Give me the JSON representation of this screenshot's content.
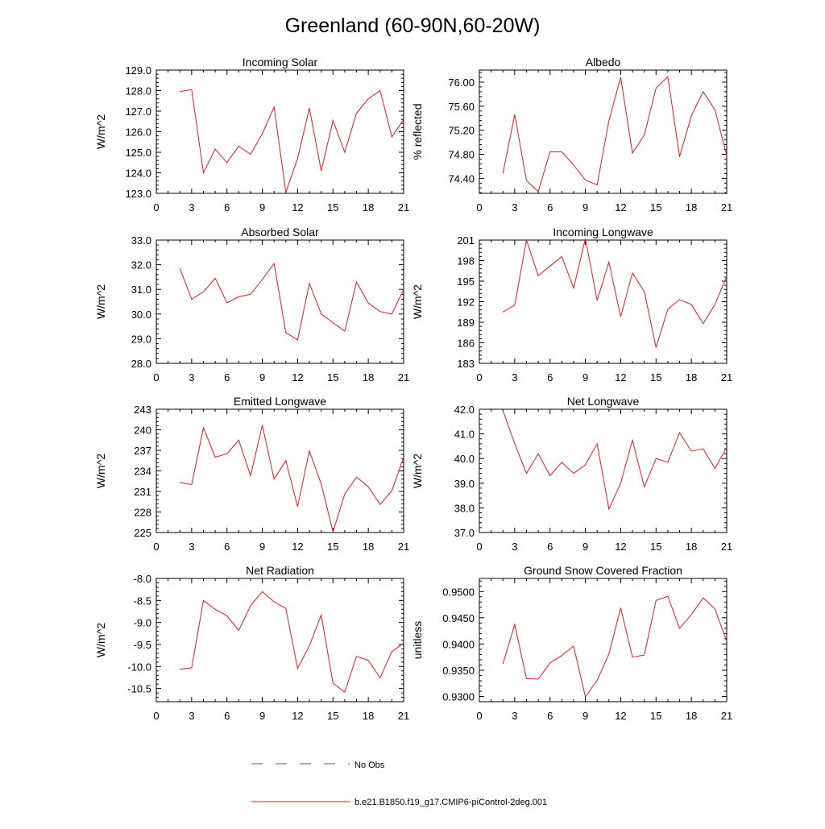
{
  "title": "Greenland (60-90N,60-20W)",
  "legend": {
    "obs_label": "No Obs",
    "obs_color": "#4a5ab8",
    "model_label": "b.e21.B1850.f19_g17.CMIP6-piControl-2deg.001",
    "model_color": "#e31a1c"
  },
  "chart_data": [
    {
      "type": "line",
      "title": "Incoming Solar",
      "ylabel": "W/m^2",
      "xlim": [
        0,
        21
      ],
      "ylim": [
        123,
        129
      ],
      "xticks": [
        0,
        3,
        6,
        9,
        12,
        15,
        18,
        21
      ],
      "yticks": [
        123,
        124,
        125,
        126,
        127,
        128,
        129
      ],
      "ytick_format": "fixed1",
      "ytick_labels_side": "left",
      "x": [
        2,
        3,
        4,
        5,
        6,
        7,
        8,
        9,
        10,
        11,
        12,
        13,
        14,
        15,
        16,
        17,
        18,
        19,
        20,
        21
      ],
      "series": [
        {
          "values": [
            127.95,
            128.05,
            124.0,
            125.15,
            124.5,
            125.3,
            124.9,
            125.9,
            127.2,
            123.05,
            124.7,
            127.15,
            124.1,
            126.55,
            125.0,
            126.9,
            127.6,
            128.0,
            125.75,
            126.6
          ]
        }
      ]
    },
    {
      "type": "line",
      "title": "Albedo",
      "ylabel": "% reflected",
      "xlim": [
        0,
        21
      ],
      "ylim": [
        74.15,
        76.2
      ],
      "xticks": [
        0,
        3,
        6,
        9,
        12,
        15,
        18,
        21
      ],
      "yticks": [
        74.4,
        74.8,
        75.2,
        75.6,
        76.0
      ],
      "ytick_format": "fixed2",
      "ytick_labels_side": "right",
      "x": [
        2,
        3,
        4,
        5,
        6,
        7,
        8,
        9,
        10,
        11,
        12,
        13,
        14,
        15,
        16,
        17,
        18,
        19,
        20,
        21
      ],
      "series": [
        {
          "values": [
            74.48,
            75.46,
            74.36,
            74.18,
            74.84,
            74.84,
            74.62,
            74.37,
            74.29,
            75.36,
            76.08,
            74.82,
            75.12,
            75.9,
            76.09,
            74.76,
            75.44,
            75.84,
            75.54,
            74.78
          ]
        }
      ]
    },
    {
      "type": "line",
      "title": "Absorbed Solar",
      "ylabel": "W/m^2",
      "xlim": [
        0,
        21
      ],
      "ylim": [
        28,
        33
      ],
      "xticks": [
        0,
        3,
        6,
        9,
        12,
        15,
        18,
        21
      ],
      "yticks": [
        28,
        29,
        30,
        31,
        32,
        33
      ],
      "ytick_format": "fixed1",
      "ytick_labels_side": "left",
      "x": [
        2,
        3,
        4,
        5,
        6,
        7,
        8,
        9,
        10,
        11,
        12,
        13,
        14,
        15,
        16,
        17,
        18,
        19,
        20,
        21
      ],
      "series": [
        {
          "values": [
            31.85,
            30.6,
            30.9,
            31.45,
            30.45,
            30.7,
            30.8,
            31.4,
            32.05,
            29.25,
            28.95,
            31.25,
            30.0,
            29.65,
            29.3,
            31.3,
            30.45,
            30.1,
            30.0,
            31.0
          ]
        }
      ]
    },
    {
      "type": "line",
      "title": "Incoming Longwave",
      "ylabel": "W/m^2",
      "xlim": [
        0,
        21
      ],
      "ylim": [
        183,
        201
      ],
      "xticks": [
        0,
        3,
        6,
        9,
        12,
        15,
        18,
        21
      ],
      "yticks": [
        183,
        186,
        189,
        192,
        195,
        198,
        201
      ],
      "ytick_format": "int",
      "ytick_labels_side": "right",
      "x": [
        2,
        3,
        4,
        5,
        6,
        7,
        8,
        9,
        10,
        11,
        12,
        13,
        14,
        15,
        16,
        17,
        18,
        19,
        20,
        21
      ],
      "series": [
        {
          "values": [
            190.5,
            191.5,
            201.0,
            195.8,
            197.2,
            198.6,
            194.0,
            201.2,
            192.2,
            197.8,
            189.8,
            196.2,
            193.5,
            185.3,
            190.9,
            192.3,
            191.6,
            188.8,
            191.6,
            195.7
          ]
        }
      ]
    },
    {
      "type": "line",
      "title": "Emitted Longwave",
      "ylabel": "W/m^2",
      "xlim": [
        0,
        21
      ],
      "ylim": [
        225,
        243
      ],
      "xticks": [
        0,
        3,
        6,
        9,
        12,
        15,
        18,
        21
      ],
      "yticks": [
        225,
        228,
        231,
        234,
        237,
        240,
        243
      ],
      "ytick_format": "int",
      "ytick_labels_side": "left",
      "x": [
        2,
        3,
        4,
        5,
        6,
        7,
        8,
        9,
        10,
        11,
        12,
        13,
        14,
        15,
        16,
        17,
        18,
        19,
        20,
        21
      ],
      "series": [
        {
          "values": [
            232.3,
            232.0,
            240.3,
            236.0,
            236.5,
            238.5,
            233.3,
            240.7,
            232.8,
            235.5,
            228.8,
            236.9,
            232.1,
            225.1,
            230.6,
            233.1,
            231.7,
            229.1,
            231.1,
            236.0
          ]
        }
      ]
    },
    {
      "type": "line",
      "title": "Net Longwave",
      "ylabel": "W/m^2",
      "xlim": [
        0,
        21
      ],
      "ylim": [
        37,
        42
      ],
      "xticks": [
        0,
        3,
        6,
        9,
        12,
        15,
        18,
        21
      ],
      "yticks": [
        37,
        38,
        39,
        40,
        41,
        42
      ],
      "ytick_format": "fixed1",
      "ytick_labels_side": "right",
      "x": [
        2,
        3,
        4,
        5,
        6,
        7,
        8,
        9,
        10,
        11,
        12,
        13,
        14,
        15,
        16,
        17,
        18,
        19,
        20,
        21
      ],
      "series": [
        {
          "values": [
            41.95,
            40.6,
            39.4,
            40.2,
            39.3,
            39.85,
            39.4,
            39.75,
            40.6,
            37.95,
            39.0,
            40.75,
            38.85,
            40.0,
            39.85,
            41.05,
            40.3,
            40.4,
            39.6,
            40.45
          ]
        }
      ]
    },
    {
      "type": "line",
      "title": "Net Radiation",
      "ylabel": "W/m^2",
      "xlim": [
        0,
        21
      ],
      "ylim": [
        -10.8,
        -8.0
      ],
      "xticks": [
        0,
        3,
        6,
        9,
        12,
        15,
        18,
        21
      ],
      "yticks": [
        -10.5,
        -10.0,
        -9.5,
        -9.0,
        -8.5,
        -8.0
      ],
      "ytick_format": "fixed1",
      "ytick_labels_side": "left",
      "x": [
        2,
        3,
        4,
        5,
        6,
        7,
        8,
        9,
        10,
        11,
        12,
        13,
        14,
        15,
        16,
        17,
        18,
        19,
        20,
        21
      ],
      "series": [
        {
          "values": [
            -10.06,
            -10.03,
            -8.5,
            -8.7,
            -8.85,
            -9.18,
            -8.62,
            -8.3,
            -8.53,
            -8.68,
            -10.04,
            -9.53,
            -8.83,
            -10.38,
            -10.58,
            -9.77,
            -9.86,
            -10.26,
            -9.66,
            -9.47
          ]
        }
      ]
    },
    {
      "type": "line",
      "title": "Ground Snow Covered Fraction",
      "ylabel": "unitless",
      "xlim": [
        0,
        21
      ],
      "ylim": [
        0.929,
        0.9525
      ],
      "xticks": [
        0,
        3,
        6,
        9,
        12,
        15,
        18,
        21
      ],
      "yticks": [
        0.93,
        0.935,
        0.94,
        0.945,
        0.95
      ],
      "ytick_format": "fixed4",
      "ytick_labels_side": "right",
      "x": [
        2,
        3,
        4,
        5,
        6,
        7,
        8,
        9,
        10,
        11,
        12,
        13,
        14,
        15,
        16,
        17,
        18,
        19,
        20,
        21
      ],
      "series": [
        {
          "values": [
            0.9362,
            0.9437,
            0.9334,
            0.9333,
            0.9364,
            0.9378,
            0.9396,
            0.9299,
            0.9331,
            0.9381,
            0.9469,
            0.9375,
            0.9379,
            0.9483,
            0.9491,
            0.943,
            0.9456,
            0.9488,
            0.9467,
            0.9405
          ]
        }
      ]
    }
  ]
}
